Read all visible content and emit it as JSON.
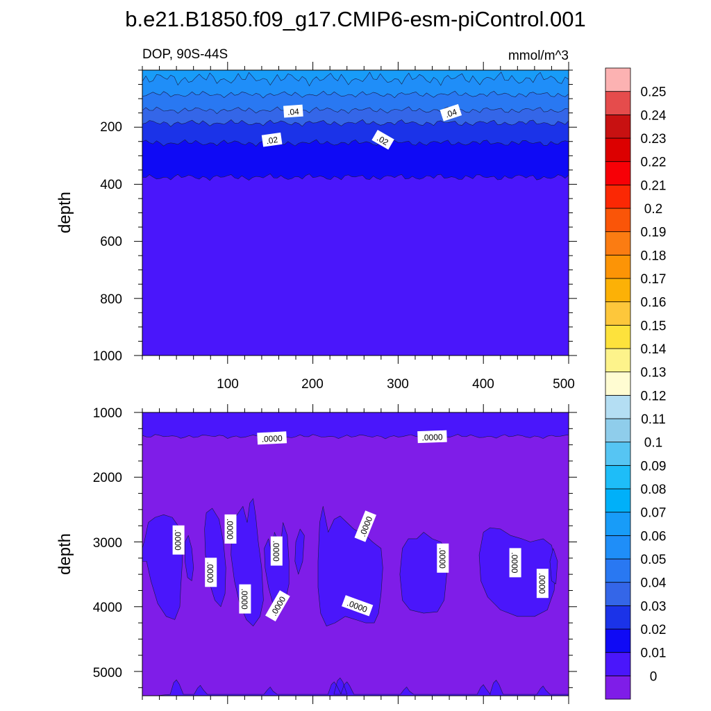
{
  "title": "b.e21.B1850.f09_g17.CMIP6-esm-piControl.001",
  "top_panel": {
    "left_label": "DOP, 90S-44S",
    "right_label": "mmol/m^3",
    "ylabel": "depth",
    "y_ticks": [
      "200",
      "400",
      "600",
      "800",
      "1000"
    ],
    "x_ticks": [
      "100",
      "200",
      "300",
      "400",
      "500"
    ],
    "contour_labels": [
      ".04",
      ".04",
      ".02",
      ".02"
    ]
  },
  "bottom_panel": {
    "ylabel": "depth",
    "y_ticks": [
      "1000",
      "2000",
      "3000",
      "4000",
      "5000"
    ],
    "contour_labels": [
      ".0000",
      ".0000",
      ".0000",
      ".0000",
      ".0000",
      ".0000",
      ".0000",
      ".0000",
      ".0000",
      ".0000",
      ".0000",
      ".0000",
      ".0000"
    ]
  },
  "chart_data": {
    "type": "heatmap",
    "title": "b.e21.B1850.f09_g17.CMIP6-esm-piControl.001",
    "variable": "DOP, 90S-44S",
    "units": "mmol/m^3",
    "xlim": [
      0,
      500
    ],
    "x_ticks": [
      100,
      200,
      300,
      400,
      500
    ],
    "panels": [
      {
        "name": "upper",
        "ylabel": "depth",
        "ylim": [
          1000,
          0
        ],
        "y_ticks": [
          200,
          400,
          600,
          800,
          1000
        ],
        "bands": [
          {
            "from": 0,
            "to": 30,
            "value": 0.06
          },
          {
            "from": 30,
            "to": 85,
            "value": 0.05
          },
          {
            "from": 85,
            "to": 140,
            "value": 0.04
          },
          {
            "from": 140,
            "to": 185,
            "value": 0.03
          },
          {
            "from": 185,
            "to": 255,
            "value": 0.02
          },
          {
            "from": 255,
            "to": 375,
            "value": 0.01
          },
          {
            "from": 375,
            "to": 1000,
            "value": 0.005
          }
        ],
        "contour_labels": [
          {
            "text": ".04",
            "x": 177,
            "depth": 145,
            "angle": -4
          },
          {
            "text": ".04",
            "x": 362,
            "depth": 150,
            "angle": -18
          },
          {
            "text": ".02",
            "x": 152,
            "depth": 245,
            "angle": -8
          },
          {
            "text": ".02",
            "x": 282,
            "depth": 245,
            "angle": 30
          }
        ]
      },
      {
        "name": "lower",
        "ylabel": "depth",
        "ylim": [
          5375,
          1000
        ],
        "y_ticks": [
          1000,
          2000,
          3000,
          4000,
          5000
        ],
        "background_value": 0,
        "top_band": {
          "from": 1000,
          "to": 1370,
          "value": 0.005
        },
        "patches_value": 0.005,
        "patches": [
          [
            [
              0,
              3100
            ],
            [
              3,
              2950
            ],
            [
              7,
              2700
            ],
            [
              15,
              2620
            ],
            [
              25,
              2580
            ],
            [
              35,
              2620
            ],
            [
              42,
              2750
            ],
            [
              47,
              2950
            ],
            [
              47,
              3300
            ],
            [
              45,
              3700
            ],
            [
              44,
              4000
            ],
            [
              38,
              4200
            ],
            [
              28,
              4150
            ],
            [
              18,
              3950
            ],
            [
              10,
              3600
            ],
            [
              5,
              3300
            ],
            [
              0,
              3300
            ]
          ],
          [
            [
              50,
              3000
            ],
            [
              54,
              2900
            ],
            [
              58,
              3100
            ],
            [
              60,
              3400
            ],
            [
              58,
              3600
            ],
            [
              53,
              3550
            ],
            [
              50,
              3300
            ]
          ],
          [
            [
              75,
              2550
            ],
            [
              82,
              2480
            ],
            [
              90,
              2650
            ],
            [
              95,
              3000
            ],
            [
              98,
              3400
            ],
            [
              97,
              3800
            ],
            [
              92,
              4000
            ],
            [
              85,
              3900
            ],
            [
              78,
              3600
            ],
            [
              74,
              3200
            ],
            [
              73,
              2800
            ]
          ],
          [
            [
              105,
              2750
            ],
            [
              110,
              2600
            ],
            [
              118,
              2450
            ],
            [
              123,
              2700
            ],
            [
              126,
              2400
            ],
            [
              130,
              2330
            ],
            [
              133,
              2600
            ],
            [
              136,
              3000
            ],
            [
              140,
              3400
            ],
            [
              142,
              3900
            ],
            [
              138,
              4150
            ],
            [
              130,
              4300
            ],
            [
              122,
              4200
            ],
            [
              114,
              3950
            ],
            [
              108,
              3600
            ],
            [
              104,
              3200
            ]
          ],
          [
            [
              143,
              3100
            ],
            [
              148,
              2950
            ],
            [
              152,
              3200
            ],
            [
              155,
              2850
            ],
            [
              158,
              2950
            ],
            [
              161,
              3200
            ],
            [
              165,
              2700
            ],
            [
              170,
              2900
            ],
            [
              172,
              3300
            ],
            [
              172,
              3650
            ],
            [
              168,
              3900
            ],
            [
              162,
              4050
            ],
            [
              154,
              4000
            ],
            [
              148,
              3700
            ],
            [
              144,
              3400
            ]
          ],
          [
            [
              180,
              3000
            ],
            [
              185,
              2800
            ],
            [
              190,
              2900
            ],
            [
              188,
              3300
            ],
            [
              183,
              3500
            ],
            [
              179,
              3300
            ]
          ],
          [
            [
              208,
              2700
            ],
            [
              212,
              2450
            ],
            [
              218,
              2850
            ],
            [
              225,
              2650
            ],
            [
              232,
              2600
            ],
            [
              240,
              2700
            ],
            [
              248,
              2800
            ],
            [
              255,
              2850
            ],
            [
              262,
              2900
            ],
            [
              270,
              3000
            ],
            [
              275,
              3050
            ],
            [
              280,
              3100
            ],
            [
              282,
              3400
            ],
            [
              280,
              3800
            ],
            [
              277,
              4100
            ],
            [
              272,
              4250
            ],
            [
              262,
              4250
            ],
            [
              250,
              4200
            ],
            [
              238,
              4150
            ],
            [
              226,
              4250
            ],
            [
              216,
              4300
            ],
            [
              209,
              4100
            ],
            [
              206,
              3700
            ],
            [
              206,
              3300
            ]
          ],
          [
            [
              305,
              3100
            ],
            [
              312,
              2950
            ],
            [
              322,
              2950
            ],
            [
              330,
              2850
            ],
            [
              340,
              2950
            ],
            [
              350,
              3000
            ],
            [
              356,
              3100
            ],
            [
              357,
              3500
            ],
            [
              354,
              3900
            ],
            [
              346,
              4080
            ],
            [
              330,
              4100
            ],
            [
              314,
              4050
            ],
            [
              305,
              3900
            ],
            [
              302,
              3500
            ]
          ],
          [
            [
              395,
              3200
            ],
            [
              400,
              2850
            ],
            [
              408,
              2780
            ],
            [
              420,
              2800
            ],
            [
              432,
              2900
            ],
            [
              445,
              2950
            ],
            [
              455,
              3000
            ],
            [
              470,
              2950
            ],
            [
              480,
              3050
            ],
            [
              485,
              3350
            ],
            [
              483,
              3750
            ],
            [
              475,
              4050
            ],
            [
              460,
              4150
            ],
            [
              440,
              4150
            ],
            [
              420,
              4050
            ],
            [
              405,
              3850
            ],
            [
              397,
              3600
            ]
          ],
          [
            [
              478,
              3300
            ],
            [
              482,
              3100
            ],
            [
              487,
              3300
            ],
            [
              485,
              3650
            ],
            [
              480,
              3600
            ]
          ]
        ],
        "bottom_bumps": [
          [
            40,
            5130
          ],
          [
            68,
            5215
          ],
          [
            150,
            5240
          ],
          [
            225,
            5160
          ],
          [
            232,
            5100
          ],
          [
            240,
            5160
          ],
          [
            310,
            5240
          ],
          [
            400,
            5205
          ],
          [
            415,
            5135
          ],
          [
            470,
            5225
          ]
        ],
        "contour_labels": [
          {
            "text": ".0000",
            "x": 152,
            "depth": 1400,
            "angle": -3
          },
          {
            "text": ".0000",
            "x": 340,
            "depth": 1380,
            "angle": -2
          },
          {
            "text": ".0000",
            "x": 42,
            "depth": 2970,
            "angle": 90
          },
          {
            "text": ".0000",
            "x": 103,
            "depth": 2800,
            "angle": 90
          },
          {
            "text": ".0000",
            "x": 80,
            "depth": 3470,
            "angle": 90
          },
          {
            "text": ".0000",
            "x": 157,
            "depth": 3140,
            "angle": 90
          },
          {
            "text": ".0000",
            "x": 262,
            "depth": 2760,
            "angle": -68
          },
          {
            "text": ".0000",
            "x": 120,
            "depth": 3880,
            "angle": 90
          },
          {
            "text": ".0000",
            "x": 159,
            "depth": 3990,
            "angle": -60
          },
          {
            "text": ".0000",
            "x": 252,
            "depth": 3990,
            "angle": 20
          },
          {
            "text": ".0000",
            "x": 352,
            "depth": 3250,
            "angle": 90
          },
          {
            "text": ".0000",
            "x": 437,
            "depth": 3320,
            "angle": 90
          },
          {
            "text": ".0000",
            "x": 469,
            "depth": 3640,
            "angle": 90
          }
        ]
      }
    ],
    "colorbar": {
      "levels": [
        "0",
        "0.01",
        "0.02",
        "0.03",
        "0.04",
        "0.05",
        "0.06",
        "0.07",
        "0.08",
        "0.09",
        "0.1",
        "0.11",
        "0.12",
        "0.13",
        "0.14",
        "0.15",
        "0.16",
        "0.17",
        "0.18",
        "0.19",
        "0.2",
        "0.21",
        "0.22",
        "0.23",
        "0.24",
        "0.25"
      ],
      "colors": [
        "#7f1de8",
        "#4a16fb",
        "#0f0af5",
        "#1b33e8",
        "#3466e8",
        "#2978f2",
        "#1f8ef8",
        "#189cf8",
        "#00b0f9",
        "#1ebdf8",
        "#56c5f3",
        "#8fcdeb",
        "#b4def3",
        "#fffcd2",
        "#fdf38b",
        "#fde23c",
        "#fdc73b",
        "#fcb106",
        "#fc9406",
        "#fb7c12",
        "#fa5508",
        "#fb2804",
        "#f70006",
        "#dc0000",
        "#c81111",
        "#e54c4c",
        "#fcb2b2"
      ]
    }
  }
}
